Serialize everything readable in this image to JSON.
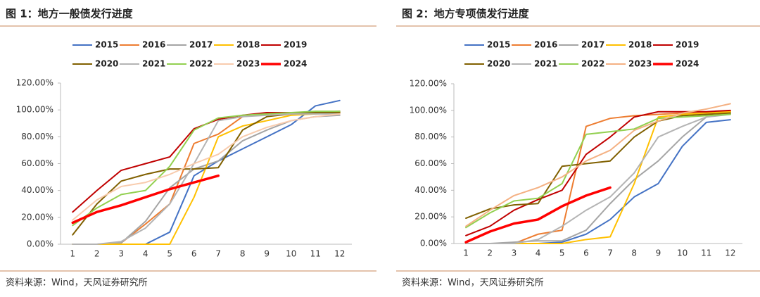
{
  "chart_data": [
    {
      "type": "line",
      "title": "图 1：地方一般债发行进度",
      "source": "资料来源：Wind，天风证券研究所",
      "categories": [
        "1",
        "2",
        "3",
        "4",
        "5",
        "6",
        "7",
        "8",
        "9",
        "10",
        "11",
        "12"
      ],
      "ylim": [
        0,
        120
      ],
      "yticks": [
        {
          "value": 0,
          "label": "0.00%"
        },
        {
          "value": 20,
          "label": "20.00%"
        },
        {
          "value": 40,
          "label": "40.00%"
        },
        {
          "value": 60,
          "label": "60.00%"
        },
        {
          "value": 80,
          "label": "80.00%"
        },
        {
          "value": 100,
          "label": "100.00%"
        },
        {
          "value": 120,
          "label": "120.00%"
        }
      ],
      "series": [
        {
          "name": "2015",
          "color": "#4472c4",
          "values": [
            0,
            0,
            0,
            0,
            9,
            51,
            62,
            71,
            80,
            89,
            103,
            107
          ]
        },
        {
          "name": "2016",
          "color": "#ed7d31",
          "values": [
            0,
            0,
            1,
            15,
            30,
            75,
            82,
            95,
            97,
            98,
            98,
            98
          ]
        },
        {
          "name": "2017",
          "color": "#a5a5a5",
          "values": [
            0,
            0,
            1,
            17,
            42,
            56,
            62,
            77,
            85,
            92,
            95,
            96
          ]
        },
        {
          "name": "2018",
          "color": "#ffc000",
          "values": [
            0,
            0,
            0,
            0,
            0,
            35,
            80,
            88,
            92,
            96,
            97,
            98
          ]
        },
        {
          "name": "2019",
          "color": "#c00000",
          "values": [
            24,
            40,
            55,
            60,
            65,
            86,
            93,
            96,
            98,
            98,
            98,
            99
          ]
        },
        {
          "name": "2020",
          "color": "#806000",
          "values": [
            7,
            30,
            47,
            52,
            56,
            56,
            57,
            85,
            95,
            97,
            98,
            98
          ]
        },
        {
          "name": "2021",
          "color": "#b4b4b4",
          "values": [
            0,
            0,
            2,
            12,
            30,
            60,
            92,
            95,
            96,
            97,
            97,
            97
          ]
        },
        {
          "name": "2022",
          "color": "#92d050",
          "values": [
            14,
            27,
            37,
            40,
            58,
            85,
            94,
            96,
            97,
            98,
            99,
            99
          ]
        },
        {
          "name": "2023",
          "color": "#f8cbad",
          "values": [
            18,
            33,
            43,
            46,
            52,
            60,
            67,
            80,
            87,
            92,
            95,
            97
          ]
        },
        {
          "name": "2024",
          "color": "#ff0000",
          "values": [
            16,
            24,
            29,
            35,
            41,
            46,
            51,
            null,
            null,
            null,
            null,
            null
          ]
        }
      ]
    },
    {
      "type": "line",
      "title": "图 2：地方专项债发行进度",
      "source": "资料来源：Wind，天风证券研究所",
      "categories": [
        "1",
        "2",
        "3",
        "4",
        "5",
        "6",
        "7",
        "8",
        "9",
        "10",
        "11",
        "12"
      ],
      "ylim": [
        0,
        120
      ],
      "yticks": [
        {
          "value": 0,
          "label": "0.00%"
        },
        {
          "value": 20,
          "label": "20.00%"
        },
        {
          "value": 40,
          "label": "40.00%"
        },
        {
          "value": 60,
          "label": "60.00%"
        },
        {
          "value": 80,
          "label": "80.00%"
        },
        {
          "value": 100,
          "label": "100.00%"
        },
        {
          "value": 120,
          "label": "120.00%"
        }
      ],
      "series": [
        {
          "name": "2015",
          "color": "#4472c4",
          "values": [
            0,
            0,
            0,
            0,
            1,
            7,
            18,
            35,
            45,
            73,
            91,
            93
          ]
        },
        {
          "name": "2016",
          "color": "#ed7d31",
          "values": [
            0,
            0,
            0,
            7,
            10,
            88,
            94,
            96,
            97,
            98,
            98,
            99
          ]
        },
        {
          "name": "2017",
          "color": "#a5a5a5",
          "values": [
            0,
            0,
            1,
            2,
            2,
            10,
            30,
            48,
            62,
            80,
            95,
            98
          ]
        },
        {
          "name": "2018",
          "color": "#ffc000",
          "values": [
            0,
            0,
            0,
            0,
            0,
            3,
            5,
            45,
            95,
            97,
            98,
            99
          ]
        },
        {
          "name": "2019",
          "color": "#c00000",
          "values": [
            6,
            13,
            25,
            33,
            40,
            67,
            80,
            95,
            99,
            99,
            99,
            100
          ]
        },
        {
          "name": "2020",
          "color": "#806000",
          "values": [
            19,
            26,
            29,
            30,
            58,
            60,
            62,
            80,
            92,
            96,
            97,
            98
          ]
        },
        {
          "name": "2021",
          "color": "#b4b4b4",
          "values": [
            0,
            0,
            0,
            3,
            13,
            25,
            35,
            53,
            80,
            88,
            95,
            97
          ]
        },
        {
          "name": "2022",
          "color": "#92d050",
          "values": [
            12,
            23,
            32,
            34,
            45,
            82,
            84,
            86,
            94,
            95,
            96,
            97
          ]
        },
        {
          "name": "2023",
          "color": "#f4b183",
          "values": [
            13,
            25,
            36,
            42,
            50,
            62,
            70,
            85,
            92,
            98,
            101,
            105
          ]
        },
        {
          "name": "2024",
          "color": "#ff0000",
          "values": [
            1,
            9,
            15,
            18,
            28,
            36,
            42,
            null,
            null,
            null,
            null,
            null
          ]
        }
      ]
    }
  ]
}
